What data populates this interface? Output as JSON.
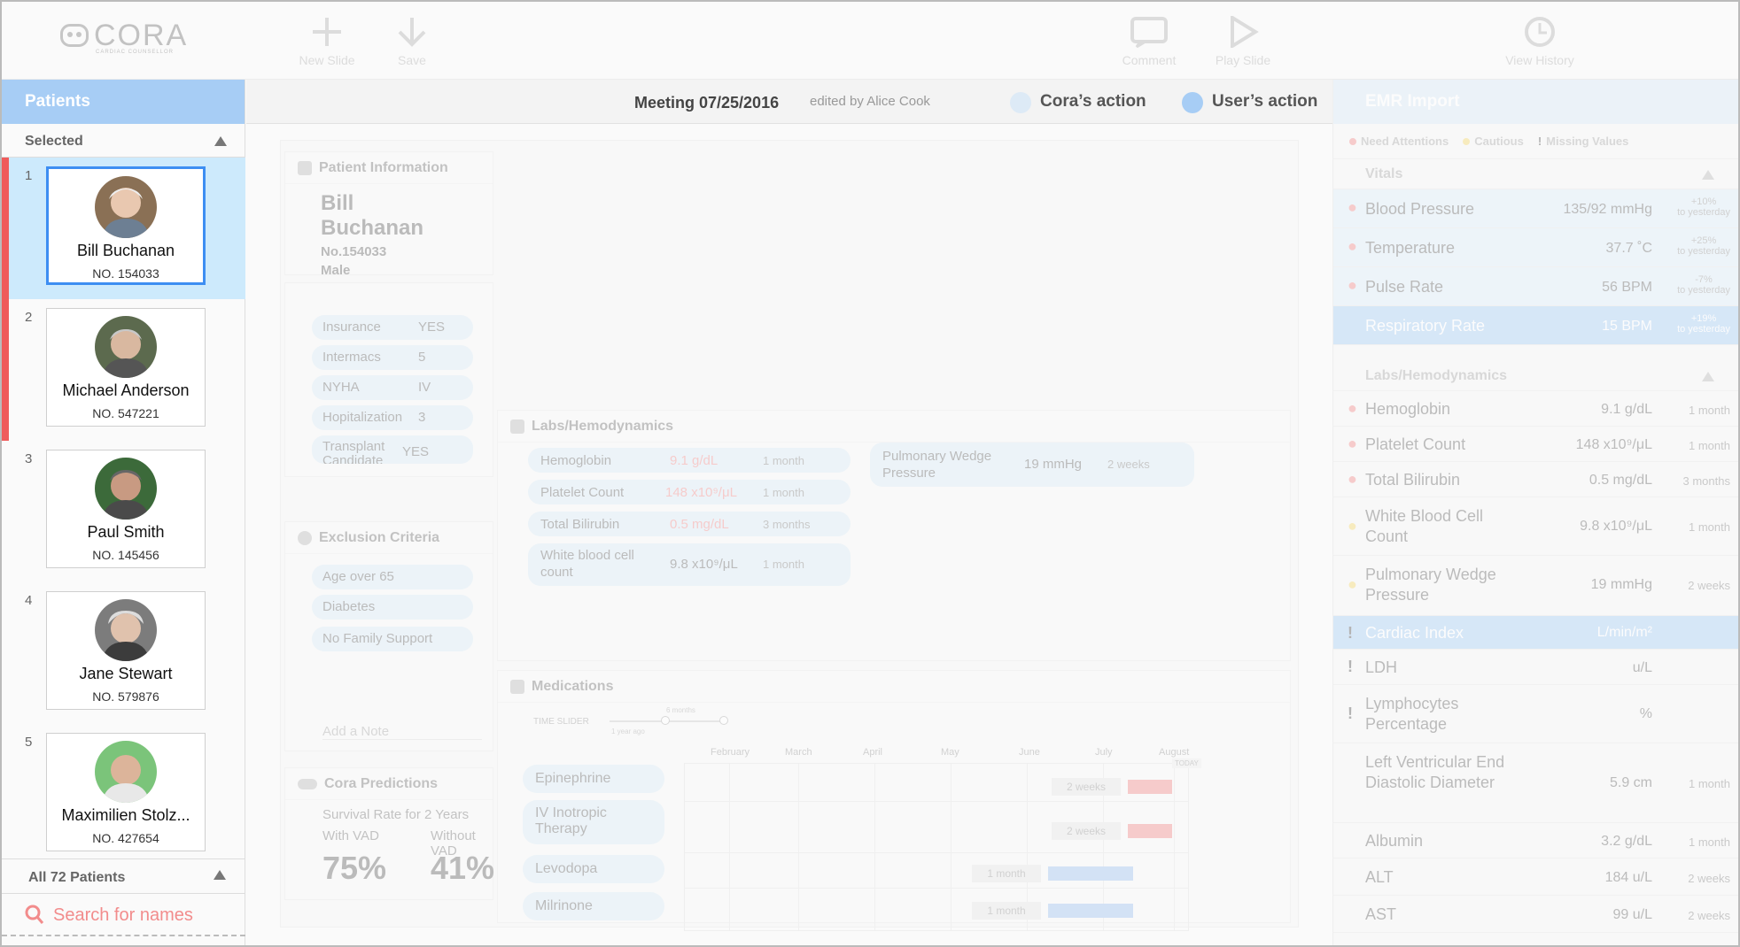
{
  "app": {
    "logo": "CORA",
    "logo_sub": "CARDIAC COUNSELLOR"
  },
  "toolbar": {
    "new_slide": "New Slide",
    "save": "Save",
    "comment": "Comment",
    "play_slide": "Play Slide",
    "view_history": "View History"
  },
  "patients": {
    "header": "Patients",
    "selected_label": "Selected",
    "all_label": "All 72 Patients",
    "search_placeholder": "Search for names",
    "list": [
      {
        "index": "1",
        "name": "Bill Buchanan",
        "number": "NO. 154033"
      },
      {
        "index": "2",
        "name": "Michael Anderson",
        "number": "NO. 547221"
      },
      {
        "index": "3",
        "name": "Paul Smith",
        "number": "NO. 145456"
      },
      {
        "index": "4",
        "name": "Jane Stewart",
        "number": "NO. 579876"
      },
      {
        "index": "5",
        "name": "Maximilien Stolz...",
        "number": "NO. 427654"
      }
    ]
  },
  "meeting": {
    "title": "Meeting 07/25/2016",
    "edited_by": "edited by Alice Cook",
    "cora_action": "Cora’s action",
    "user_action": "User’s action",
    "cora_color": "#ddeaf6",
    "user_color": "#a7cdf5"
  },
  "patient_info": {
    "header": "Patient Information",
    "name": "Bill Buchanan",
    "number": "No.154033",
    "sex": "Male",
    "attributes": [
      {
        "label": "Insurance",
        "value": "YES"
      },
      {
        "label": "Intermacs",
        "value": "5"
      },
      {
        "label": "NYHA",
        "value": "IV"
      },
      {
        "label": "Hopitalization",
        "value": "3"
      },
      {
        "label": "Transplant Candidate",
        "value": "YES"
      }
    ]
  },
  "exclusion": {
    "header": "Exclusion Criteria",
    "items": [
      "Age over 65",
      "Diabetes",
      "No Family Support"
    ],
    "note_placeholder": "Add a Note"
  },
  "predictions": {
    "header": "Cora Predictions",
    "subtitle": "Survival Rate for 2 Years",
    "with_label": "With VAD",
    "without_label": "Without VAD",
    "with_value": "75%",
    "without_value": "41%"
  },
  "labs": {
    "header": "Labs/Hemodynamics",
    "items": [
      {
        "name": "Hemoglobin",
        "value": "9.1 g/dL",
        "time": "1 month"
      },
      {
        "name": "Platelet Count",
        "value": "148 x10⁹/μL",
        "time": "1 month"
      },
      {
        "name": "Total Bilirubin",
        "value": "0.5 mg/dL",
        "time": "3 months"
      },
      {
        "name": "White blood cell count",
        "value": "9.8 x10⁹/μL",
        "time": "1 month"
      }
    ],
    "pwp": {
      "name": "Pulmonary Wedge Pressure",
      "value": "19 mmHg",
      "time": "2 weeks"
    }
  },
  "medications": {
    "header": "Medications",
    "time_slider": "TIME SLIDER",
    "slider_value": "6 months",
    "slider_min": "1 year ago",
    "today": "TODAY",
    "months": [
      "February",
      "March",
      "April",
      "May",
      "June",
      "July",
      "August"
    ],
    "items": [
      {
        "name": "Epinephrine",
        "duration": "2 weeks",
        "level": 1
      },
      {
        "name": "IV Inotropic Therapy",
        "duration": "2 weeks",
        "level": 1
      },
      {
        "name": "Levodopa",
        "duration": "1 month",
        "level": 2
      },
      {
        "name": "Milrinone",
        "duration": "1 month",
        "level": 2
      }
    ],
    "colors": {
      "bar_red": "#f28c8c",
      "bar_blue": "#9fc3f0"
    }
  },
  "emr": {
    "header": "EMR Import",
    "legend": {
      "need": "Need Attentions",
      "cautious": "Cautious",
      "missing": "Missing Values"
    },
    "colors": {
      "need": "#f28c8c",
      "cautious": "#f5d76e",
      "selected": "#dcecf8"
    },
    "vitals_label": "Vitals",
    "labs_label": "Labs/Hemodynamics",
    "vitals": [
      {
        "name": "Blood Pressure",
        "value": "135/92 mmHg",
        "change": "+10%",
        "change_sub": "to yesterday"
      },
      {
        "name": "Temperature",
        "value": "37.7 ˚C",
        "change": "+25%",
        "change_sub": "to yesterday"
      },
      {
        "name": "Pulse Rate",
        "value": "56 BPM",
        "change": "-7%",
        "change_sub": "to yesterday"
      },
      {
        "name": "Respiratory Rate",
        "value": "15 BPM",
        "change": "+19%",
        "change_sub": "to yesterday"
      }
    ],
    "labs": [
      {
        "name": "Hemoglobin",
        "value": "9.1 g/dL",
        "time": "1 month",
        "flag": "need"
      },
      {
        "name": "Platelet Count",
        "value": "148 x10⁹/μL",
        "time": "1 month",
        "flag": "need"
      },
      {
        "name": "Total Bilirubin",
        "value": "0.5 mg/dL",
        "time": "3 months",
        "flag": "need"
      },
      {
        "name": "White Blood Cell Count",
        "value": "9.8 x10⁹/μL",
        "time": "1 month",
        "flag": "cautious"
      },
      {
        "name": "Pulmonary Wedge Pressure",
        "value": "19 mmHg",
        "time": "2 weeks",
        "flag": "cautious"
      },
      {
        "name": "Cardiac Index",
        "value": "L/min/m²",
        "time": "",
        "flag": "missing"
      },
      {
        "name": "LDH",
        "value": "u/L",
        "time": "",
        "flag": "missing"
      },
      {
        "name": "Lymphocytes Percentage",
        "value": "%",
        "time": "",
        "flag": "missing"
      },
      {
        "name": "Left Ventricular End Diastolic Diameter",
        "value": "5.9 cm",
        "time": "1 month",
        "flag": ""
      },
      {
        "name": "Albumin",
        "value": "3.2 g/dL",
        "time": "1 month",
        "flag": ""
      },
      {
        "name": "ALT",
        "value": "184 u/L",
        "time": "2 weeks",
        "flag": ""
      },
      {
        "name": "AST",
        "value": "99 u/L",
        "time": "2 weeks",
        "flag": ""
      }
    ]
  }
}
